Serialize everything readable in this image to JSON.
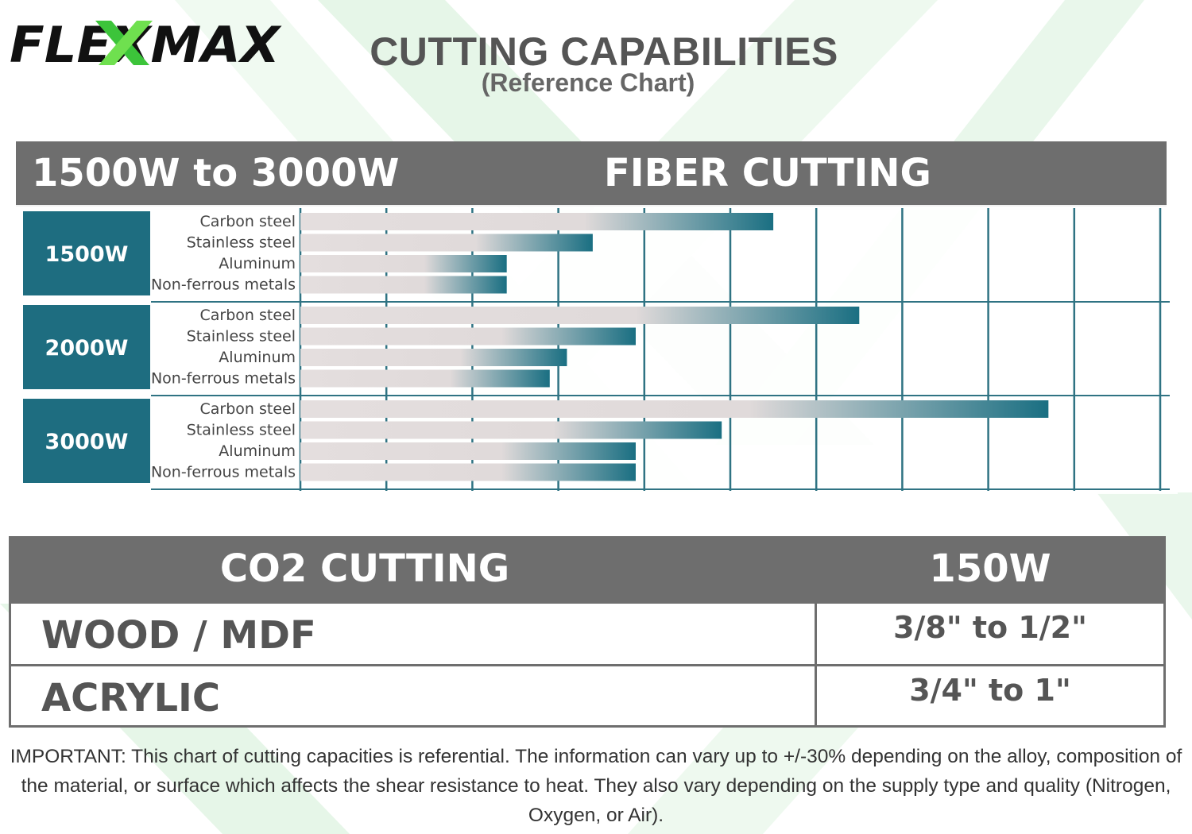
{
  "brand": {
    "logo_text": "FLEXMAX"
  },
  "header": {
    "title": "CUTTING CAPABILITIES",
    "subtitle": "(Reference Chart)"
  },
  "fiber": {
    "range_label": "1500W to 3000W",
    "title": "FIBER CUTTING"
  },
  "chart_data": {
    "type": "bar",
    "orientation": "horizontal",
    "title": "",
    "xlabel": "",
    "ylabel": "",
    "xlim": [
      0,
      10
    ],
    "grid": true,
    "categories": [
      "Carbon steel",
      "Stainless steel",
      "Aluminum",
      "Non-ferrous metals"
    ],
    "groups": [
      {
        "name": "1500W",
        "values": [
          5.5,
          3.4,
          2.4,
          2.4
        ]
      },
      {
        "name": "2000W",
        "values": [
          6.5,
          3.9,
          3.1,
          2.9
        ]
      },
      {
        "name": "3000W",
        "values": [
          8.7,
          4.9,
          3.9,
          3.9
        ]
      }
    ],
    "colors": {
      "bar_start": "#e2dcdc",
      "bar_end": "#1a6f82",
      "group_box": "#1e6d80",
      "grid": "#2f7383"
    }
  },
  "co2": {
    "title": "CO2 CUTTING",
    "power": "150W",
    "rows": [
      {
        "material": "WOOD / MDF",
        "value": "3/8\" to 1/2\""
      },
      {
        "material": "ACRYLIC",
        "value": "3/4\" to 1\""
      }
    ]
  },
  "note": {
    "text": "IMPORTANT: This chart of cutting capacities is referential. The information can vary up to +/-30% depending on the alloy, composition of the material, or surface which affects the shear resistance to heat. They also vary depending on the supply type and quality (Nitrogen, Oxygen, or Air)."
  }
}
